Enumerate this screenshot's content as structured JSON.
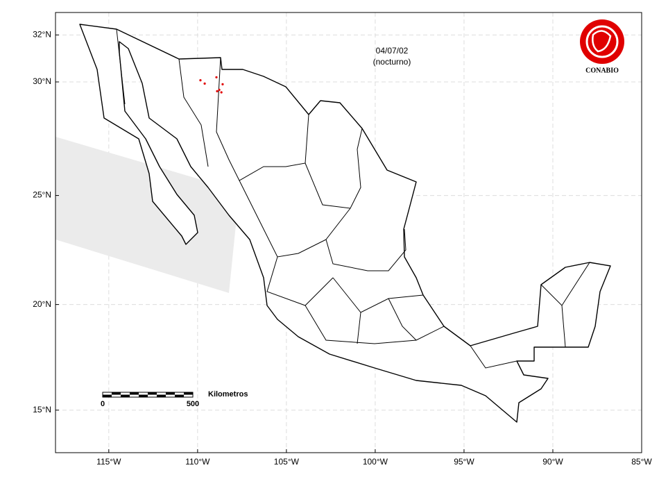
{
  "map": {
    "date": "04/07/02",
    "note": "(nocturno)",
    "logo_text": "CONABIO",
    "xlim": [
      -118,
      -85
    ],
    "ylim": [
      12.95,
      32.94
    ],
    "xticks": [
      {
        "value": -115,
        "label": "115°W"
      },
      {
        "value": -110,
        "label": "110°W"
      },
      {
        "value": -105,
        "label": "105°W"
      },
      {
        "value": -100,
        "label": "100°W"
      },
      {
        "value": -95,
        "label": "95°W"
      },
      {
        "value": -90,
        "label": "90°W"
      },
      {
        "value": -85,
        "label": "85°W"
      }
    ],
    "yticks": [
      {
        "value": 15,
        "label": "15°N"
      },
      {
        "value": 20,
        "label": "20°N"
      },
      {
        "value": 25,
        "label": "25°N"
      },
      {
        "value": 30,
        "label": "30°N"
      },
      {
        "value": 32,
        "label": "32°N"
      }
    ],
    "scale_bar": {
      "label": "Kilometros",
      "ticks": [
        0,
        500
      ]
    },
    "fire_points": {
      "color": "#e00000",
      "lon": [
        -109.84,
        -109.6,
        -108.94,
        -108.9,
        -108.78,
        -108.59,
        -108.66
      ],
      "lat": [
        30.07,
        29.93,
        30.2,
        29.6,
        29.66,
        29.9,
        29.55
      ]
    }
  }
}
